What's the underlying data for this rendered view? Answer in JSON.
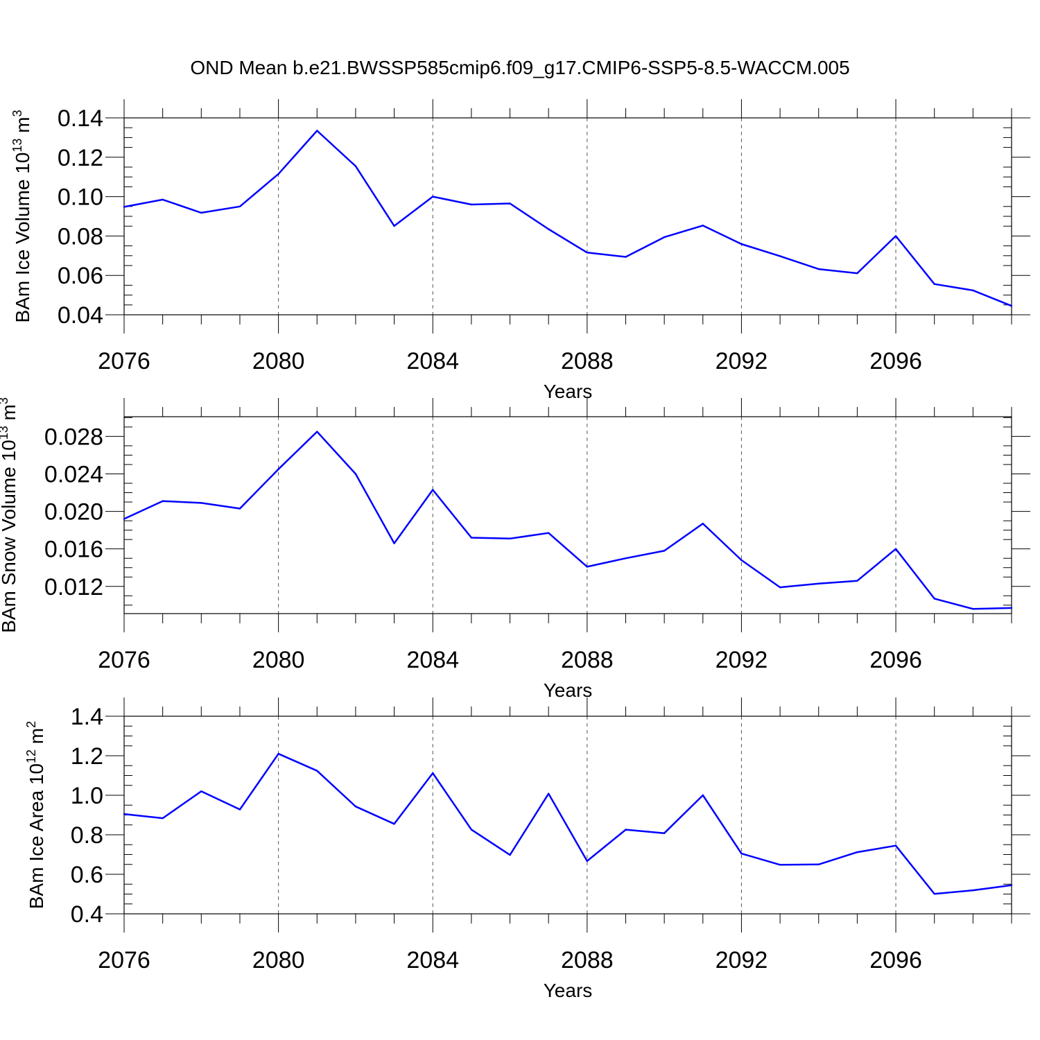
{
  "title": "OND Mean b.e21.BWSSP585cmip6.f09_g17.CMIP6-SSP5-8.5-WACCM.005",
  "colors": {
    "series": "#0000ff",
    "axis": "#000000",
    "grid": "#555555"
  },
  "chart_data": [
    {
      "type": "line",
      "xlabel": "Years",
      "ylabel": {
        "text": "BAm Ice Volume 10",
        "exp": "13",
        "unit": " m",
        "unit_exp": "3"
      },
      "xlim": [
        2076,
        2099
      ],
      "ylim": [
        0.04,
        0.14
      ],
      "xticks": [
        2076,
        2080,
        2084,
        2088,
        2092,
        2096
      ],
      "yticks": [
        0.04,
        0.06,
        0.08,
        0.1,
        0.12,
        0.14
      ],
      "ytick_labels": [
        "0.04",
        "0.06",
        "0.08",
        "0.10",
        "0.12",
        "0.14"
      ],
      "y_minor_step": 0.005,
      "grid": "vertical dashed at major x ticks",
      "x": [
        2076,
        2077,
        2078,
        2079,
        2080,
        2081,
        2082,
        2083,
        2084,
        2085,
        2086,
        2087,
        2088,
        2089,
        2090,
        2091,
        2092,
        2093,
        2094,
        2095,
        2096,
        2097,
        2098,
        2099
      ],
      "y": [
        0.0948,
        0.0985,
        0.0918,
        0.095,
        0.1115,
        0.1335,
        0.1155,
        0.0851,
        0.1,
        0.096,
        0.0965,
        0.0835,
        0.0716,
        0.0694,
        0.0794,
        0.0853,
        0.0759,
        0.0698,
        0.0632,
        0.0611,
        0.08,
        0.0556,
        0.0524,
        0.0445
      ]
    },
    {
      "type": "line",
      "xlabel": "Years",
      "ylabel": {
        "text": "BAm Snow Volume 10",
        "exp": "13",
        "unit": " m",
        "unit_exp": "3"
      },
      "xlim": [
        2076,
        2099
      ],
      "ylim": [
        0.0091,
        0.0301
      ],
      "xticks": [
        2076,
        2080,
        2084,
        2088,
        2092,
        2096
      ],
      "yticks": [
        0.012,
        0.016,
        0.02,
        0.024,
        0.028
      ],
      "ytick_labels": [
        "0.012",
        "0.016",
        "0.020",
        "0.024",
        "0.028"
      ],
      "y_minor_step": 0.001,
      "grid": "vertical dashed at major x ticks",
      "x": [
        2076,
        2077,
        2078,
        2079,
        2080,
        2081,
        2082,
        2083,
        2084,
        2085,
        2086,
        2087,
        2088,
        2089,
        2090,
        2091,
        2092,
        2093,
        2094,
        2095,
        2096,
        2097,
        2098,
        2099
      ],
      "y": [
        0.0192,
        0.0211,
        0.0209,
        0.0203,
        0.0245,
        0.0285,
        0.024,
        0.0166,
        0.0223,
        0.0172,
        0.0171,
        0.0177,
        0.0141,
        0.015,
        0.0158,
        0.0187,
        0.0148,
        0.0119,
        0.0123,
        0.0126,
        0.016,
        0.0107,
        0.0096,
        0.0097
      ]
    },
    {
      "type": "line",
      "xlabel": "Years",
      "ylabel": {
        "text": "BAm Ice Area 10",
        "exp": "12",
        "unit": " m",
        "unit_exp": "2"
      },
      "xlim": [
        2076,
        2099
      ],
      "ylim": [
        0.4,
        1.4
      ],
      "xticks": [
        2076,
        2080,
        2084,
        2088,
        2092,
        2096
      ],
      "yticks": [
        0.4,
        0.6,
        0.8,
        1.0,
        1.2,
        1.4
      ],
      "ytick_labels": [
        "0.4",
        "0.6",
        "0.8",
        "1.0",
        "1.2",
        "1.4"
      ],
      "y_minor_step": 0.05,
      "grid": "vertical dashed at major x ticks",
      "x": [
        2076,
        2077,
        2078,
        2079,
        2080,
        2081,
        2082,
        2083,
        2084,
        2085,
        2086,
        2087,
        2088,
        2089,
        2090,
        2091,
        2092,
        2093,
        2094,
        2095,
        2096,
        2097,
        2098,
        2099
      ],
      "y": [
        0.905,
        0.884,
        1.02,
        0.928,
        1.21,
        1.124,
        0.943,
        0.855,
        1.112,
        0.826,
        0.698,
        1.008,
        0.667,
        0.826,
        0.808,
        1.0,
        0.705,
        0.648,
        0.65,
        0.712,
        0.745,
        0.501,
        0.519,
        0.545
      ]
    }
  ]
}
